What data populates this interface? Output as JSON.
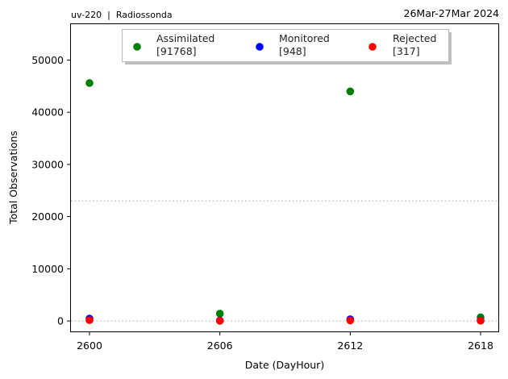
{
  "header": {
    "left_title": "uv-220  |  Radiossonda",
    "right_title": "26Mar-27Mar 2024"
  },
  "chart_data": {
    "type": "scatter",
    "xlabel": "Date (DayHour)",
    "ylabel": "Total Observations",
    "x_categories": [
      "2600",
      "2606",
      "2612",
      "2618"
    ],
    "ylim": [
      -2000,
      56500
    ],
    "yticks": [
      0,
      10000,
      20000,
      30000,
      40000,
      50000
    ],
    "grid": false,
    "reference_lines": [
      23000,
      0
    ],
    "legend_position": "top-center",
    "series": [
      {
        "name": "Assimilated",
        "count_label": "[91768]",
        "color": "#008000",
        "values": [
          45600,
          1400,
          44000,
          700
        ]
      },
      {
        "name": "Monitored",
        "count_label": "[948]",
        "color": "#0000ff",
        "values": [
          450,
          80,
          330,
          90
        ]
      },
      {
        "name": "Rejected",
        "count_label": "[317]",
        "color": "#ff0000",
        "values": [
          150,
          30,
          90,
          40
        ]
      }
    ]
  }
}
